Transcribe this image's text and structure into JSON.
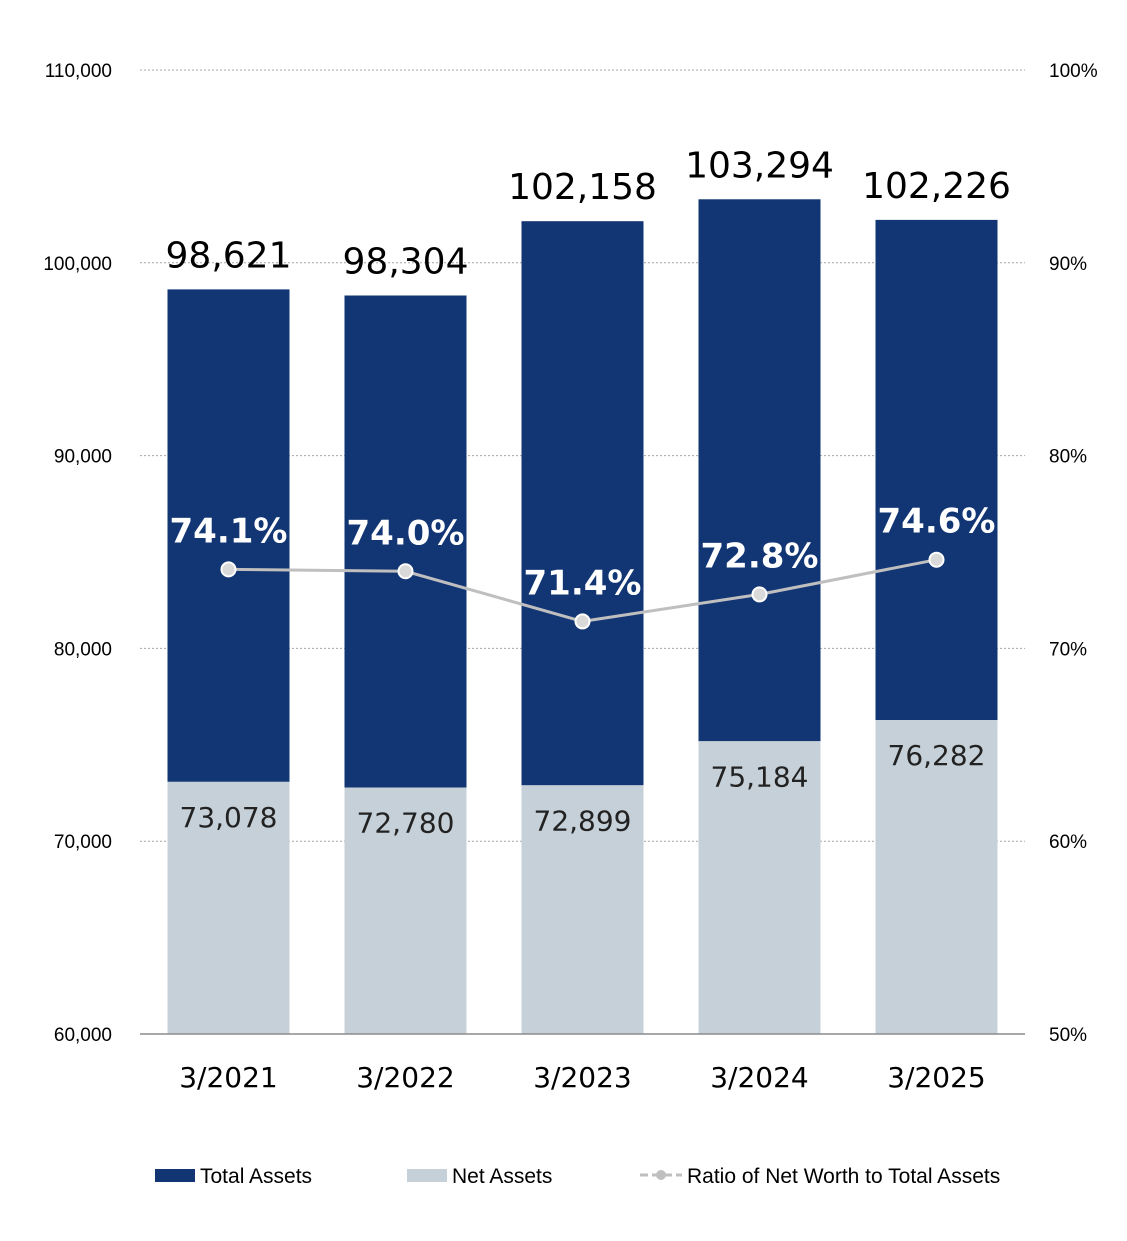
{
  "chart_data": {
    "type": "bar",
    "categories": [
      "3/2021",
      "3/2022",
      "3/2023",
      "3/2024",
      "3/2025"
    ],
    "series": [
      {
        "name": "Total Assets",
        "kind": "bar",
        "values": [
          98621,
          98304,
          102158,
          103294,
          102226
        ],
        "labels": [
          "98,621",
          "98,304",
          "102,158",
          "103,294",
          "102,226"
        ],
        "color": "#123674"
      },
      {
        "name": "Net Assets",
        "kind": "bar",
        "values": [
          73078,
          72780,
          72899,
          75184,
          76282
        ],
        "labels": [
          "73,078",
          "72,780",
          "72,899",
          "75,184",
          "76,282"
        ],
        "color": "#c6d0d8"
      },
      {
        "name": "Ratio of Net Worth to Total Assets",
        "kind": "line",
        "axis": "right",
        "values": [
          74.1,
          74.0,
          71.4,
          72.8,
          74.6
        ],
        "labels": [
          "74.1%",
          "74.0%",
          "71.4%",
          "72.8%",
          "74.6%"
        ],
        "color": "#bfbfbf"
      }
    ],
    "ylim": [
      60000,
      110000
    ],
    "y2lim": [
      50,
      100
    ],
    "yticks": [
      "60,000",
      "70,000",
      "80,000",
      "90,000",
      "100,000",
      "110,000"
    ],
    "y2ticks": [
      "50%",
      "60%",
      "70%",
      "80%",
      "90%",
      "100%"
    ],
    "grid": true,
    "legend_position": "bottom"
  }
}
